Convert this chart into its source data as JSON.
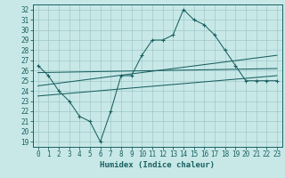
{
  "xlabel": "Humidex (Indice chaleur)",
  "bg_color": "#c8e8e8",
  "grid_color": "#a0c8c8",
  "line_color": "#1a6060",
  "spine_color": "#1a6060",
  "xlim": [
    -0.5,
    23.5
  ],
  "ylim": [
    18.5,
    32.5
  ],
  "yticks": [
    19,
    20,
    21,
    22,
    23,
    24,
    25,
    26,
    27,
    28,
    29,
    30,
    31,
    32
  ],
  "xticks": [
    0,
    1,
    2,
    3,
    4,
    5,
    6,
    7,
    8,
    9,
    10,
    11,
    12,
    13,
    14,
    15,
    16,
    17,
    18,
    19,
    20,
    21,
    22,
    23
  ],
  "line1_x": [
    0,
    1,
    2,
    3,
    4,
    5,
    6,
    7,
    8,
    9,
    10,
    11,
    12,
    13,
    14,
    15,
    16,
    17,
    18,
    19,
    20,
    21,
    22,
    23
  ],
  "line1_y": [
    26.5,
    25.5,
    24.0,
    23.0,
    21.5,
    21.0,
    19.0,
    22.0,
    25.5,
    25.5,
    27.5,
    29.0,
    29.0,
    29.5,
    32.0,
    31.0,
    30.5,
    29.5,
    28.0,
    26.5,
    25.0,
    25.0,
    25.0,
    25.0
  ],
  "line2_x": [
    0,
    23
  ],
  "line2_y": [
    25.8,
    26.2
  ],
  "line3_x": [
    0,
    23
  ],
  "line3_y": [
    24.5,
    27.5
  ],
  "line4_x": [
    0,
    23
  ],
  "line4_y": [
    23.5,
    25.5
  ],
  "tick_fontsize": 5.5,
  "xlabel_fontsize": 6.5,
  "linewidth": 0.75,
  "marker_size": 3.0
}
